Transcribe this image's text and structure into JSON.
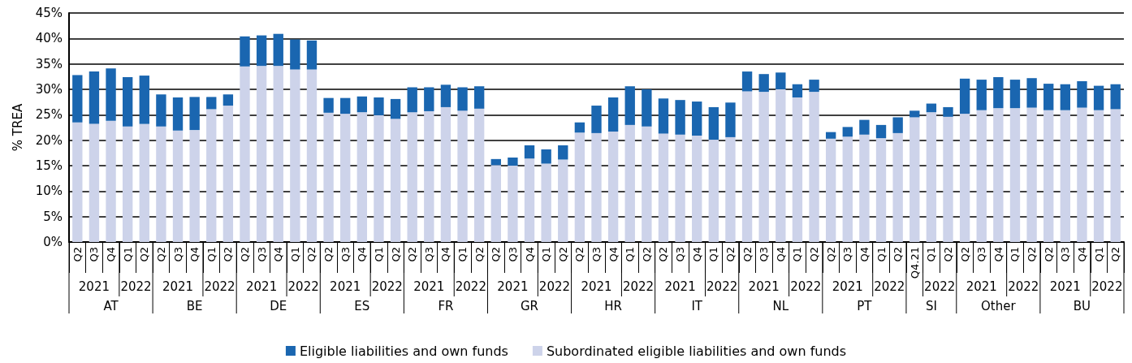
{
  "chart_data": {
    "type": "bar",
    "stacked": true,
    "ylabel": "% TREA",
    "categories": [
      "Q2",
      "Q3",
      "Q4",
      "Q1",
      "Q2",
      "Q2",
      "Q3",
      "Q4",
      "Q1",
      "Q2",
      "Q2",
      "Q3",
      "Q4",
      "Q1",
      "Q2",
      "Q2",
      "Q3",
      "Q4",
      "Q1",
      "Q2",
      "Q2",
      "Q3",
      "Q4",
      "Q1",
      "Q2",
      "Q2",
      "Q3",
      "Q4",
      "Q1",
      "Q2",
      "Q2",
      "Q3",
      "Q4",
      "Q1",
      "Q2",
      "Q2",
      "Q3",
      "Q4",
      "Q1",
      "Q2",
      "Q2",
      "Q3",
      "Q4",
      "Q1",
      "Q2",
      "Q2",
      "Q3",
      "Q4",
      "Q1",
      "Q2",
      "Q4.21",
      "Q1",
      "Q2",
      "Q2",
      "Q3",
      "Q4",
      "Q1",
      "Q2",
      "Q2",
      "Q3",
      "Q4",
      "Q1",
      "Q2"
    ],
    "series": [
      {
        "name": "Subordinated eligible liabilities and own funds",
        "color": "#cdd3ea",
        "values": [
          23.5,
          23.2,
          23.8,
          22.7,
          23.2,
          22.7,
          21.9,
          22.0,
          26.1,
          26.8,
          34.5,
          34.6,
          34.6,
          33.9,
          33.9,
          25.4,
          25.2,
          25.5,
          24.9,
          24.2,
          25.5,
          25.7,
          26.5,
          25.8,
          26.2,
          15.1,
          15.0,
          16.4,
          15.4,
          16.2,
          21.5,
          21.4,
          21.7,
          23.0,
          22.7,
          21.3,
          21.1,
          20.9,
          20.1,
          20.6,
          29.6,
          29.5,
          30.0,
          28.4,
          29.5,
          20.3,
          20.7,
          21.1,
          20.4,
          21.4,
          24.5,
          25.5,
          24.6,
          25.2,
          25.9,
          26.3,
          26.3,
          26.4,
          25.9,
          25.9,
          26.4,
          25.9,
          26.1
        ]
      },
      {
        "name": "Eligible liabilities and own funds",
        "color": "#1a66b0",
        "values": [
          9.3,
          10.3,
          10.3,
          9.7,
          9.5,
          6.3,
          6.5,
          6.5,
          2.4,
          2.2,
          5.9,
          6.0,
          6.3,
          5.9,
          5.7,
          2.9,
          3.1,
          3.1,
          3.5,
          3.9,
          4.9,
          4.7,
          4.4,
          4.6,
          4.4,
          1.2,
          1.6,
          2.6,
          2.8,
          2.8,
          2.0,
          5.4,
          6.7,
          7.6,
          7.3,
          6.9,
          6.8,
          6.7,
          6.4,
          6.8,
          3.9,
          3.5,
          3.3,
          2.6,
          2.4,
          1.3,
          1.9,
          2.9,
          2.6,
          3.1,
          1.3,
          1.7,
          1.9,
          6.9,
          6.0,
          6.1,
          5.6,
          5.8,
          5.2,
          5.1,
          5.2,
          4.8,
          4.9
        ]
      }
    ],
    "ylim": [
      0,
      45
    ],
    "yticks": [
      {
        "value": 0,
        "label": "0%"
      },
      {
        "value": 5,
        "label": "5%"
      },
      {
        "value": 10,
        "label": "10%"
      },
      {
        "value": 15,
        "label": "15%"
      },
      {
        "value": 20,
        "label": "20%"
      },
      {
        "value": 25,
        "label": "25%"
      },
      {
        "value": 30,
        "label": "30%"
      },
      {
        "value": 35,
        "label": "35%"
      },
      {
        "value": 40,
        "label": "40%"
      },
      {
        "value": 45,
        "label": "45%"
      }
    ],
    "grid": "y",
    "legend": "bottom",
    "annotations": [
      "2021",
      "2022",
      "AT",
      "2021",
      "2022",
      "BE",
      "2021",
      "2022",
      "DE",
      "2021",
      "2022",
      "ES",
      "2021",
      "2022",
      "FR",
      "2021",
      "2022",
      "GR",
      "2021",
      "2022",
      "HR",
      "2021",
      "2022",
      "IT",
      "2021",
      "2022",
      "NL",
      "2021",
      "2022",
      "PT",
      "2022",
      "SI",
      "2021",
      "2022",
      "Other",
      "2021",
      "2022",
      "BU"
    ]
  }
}
